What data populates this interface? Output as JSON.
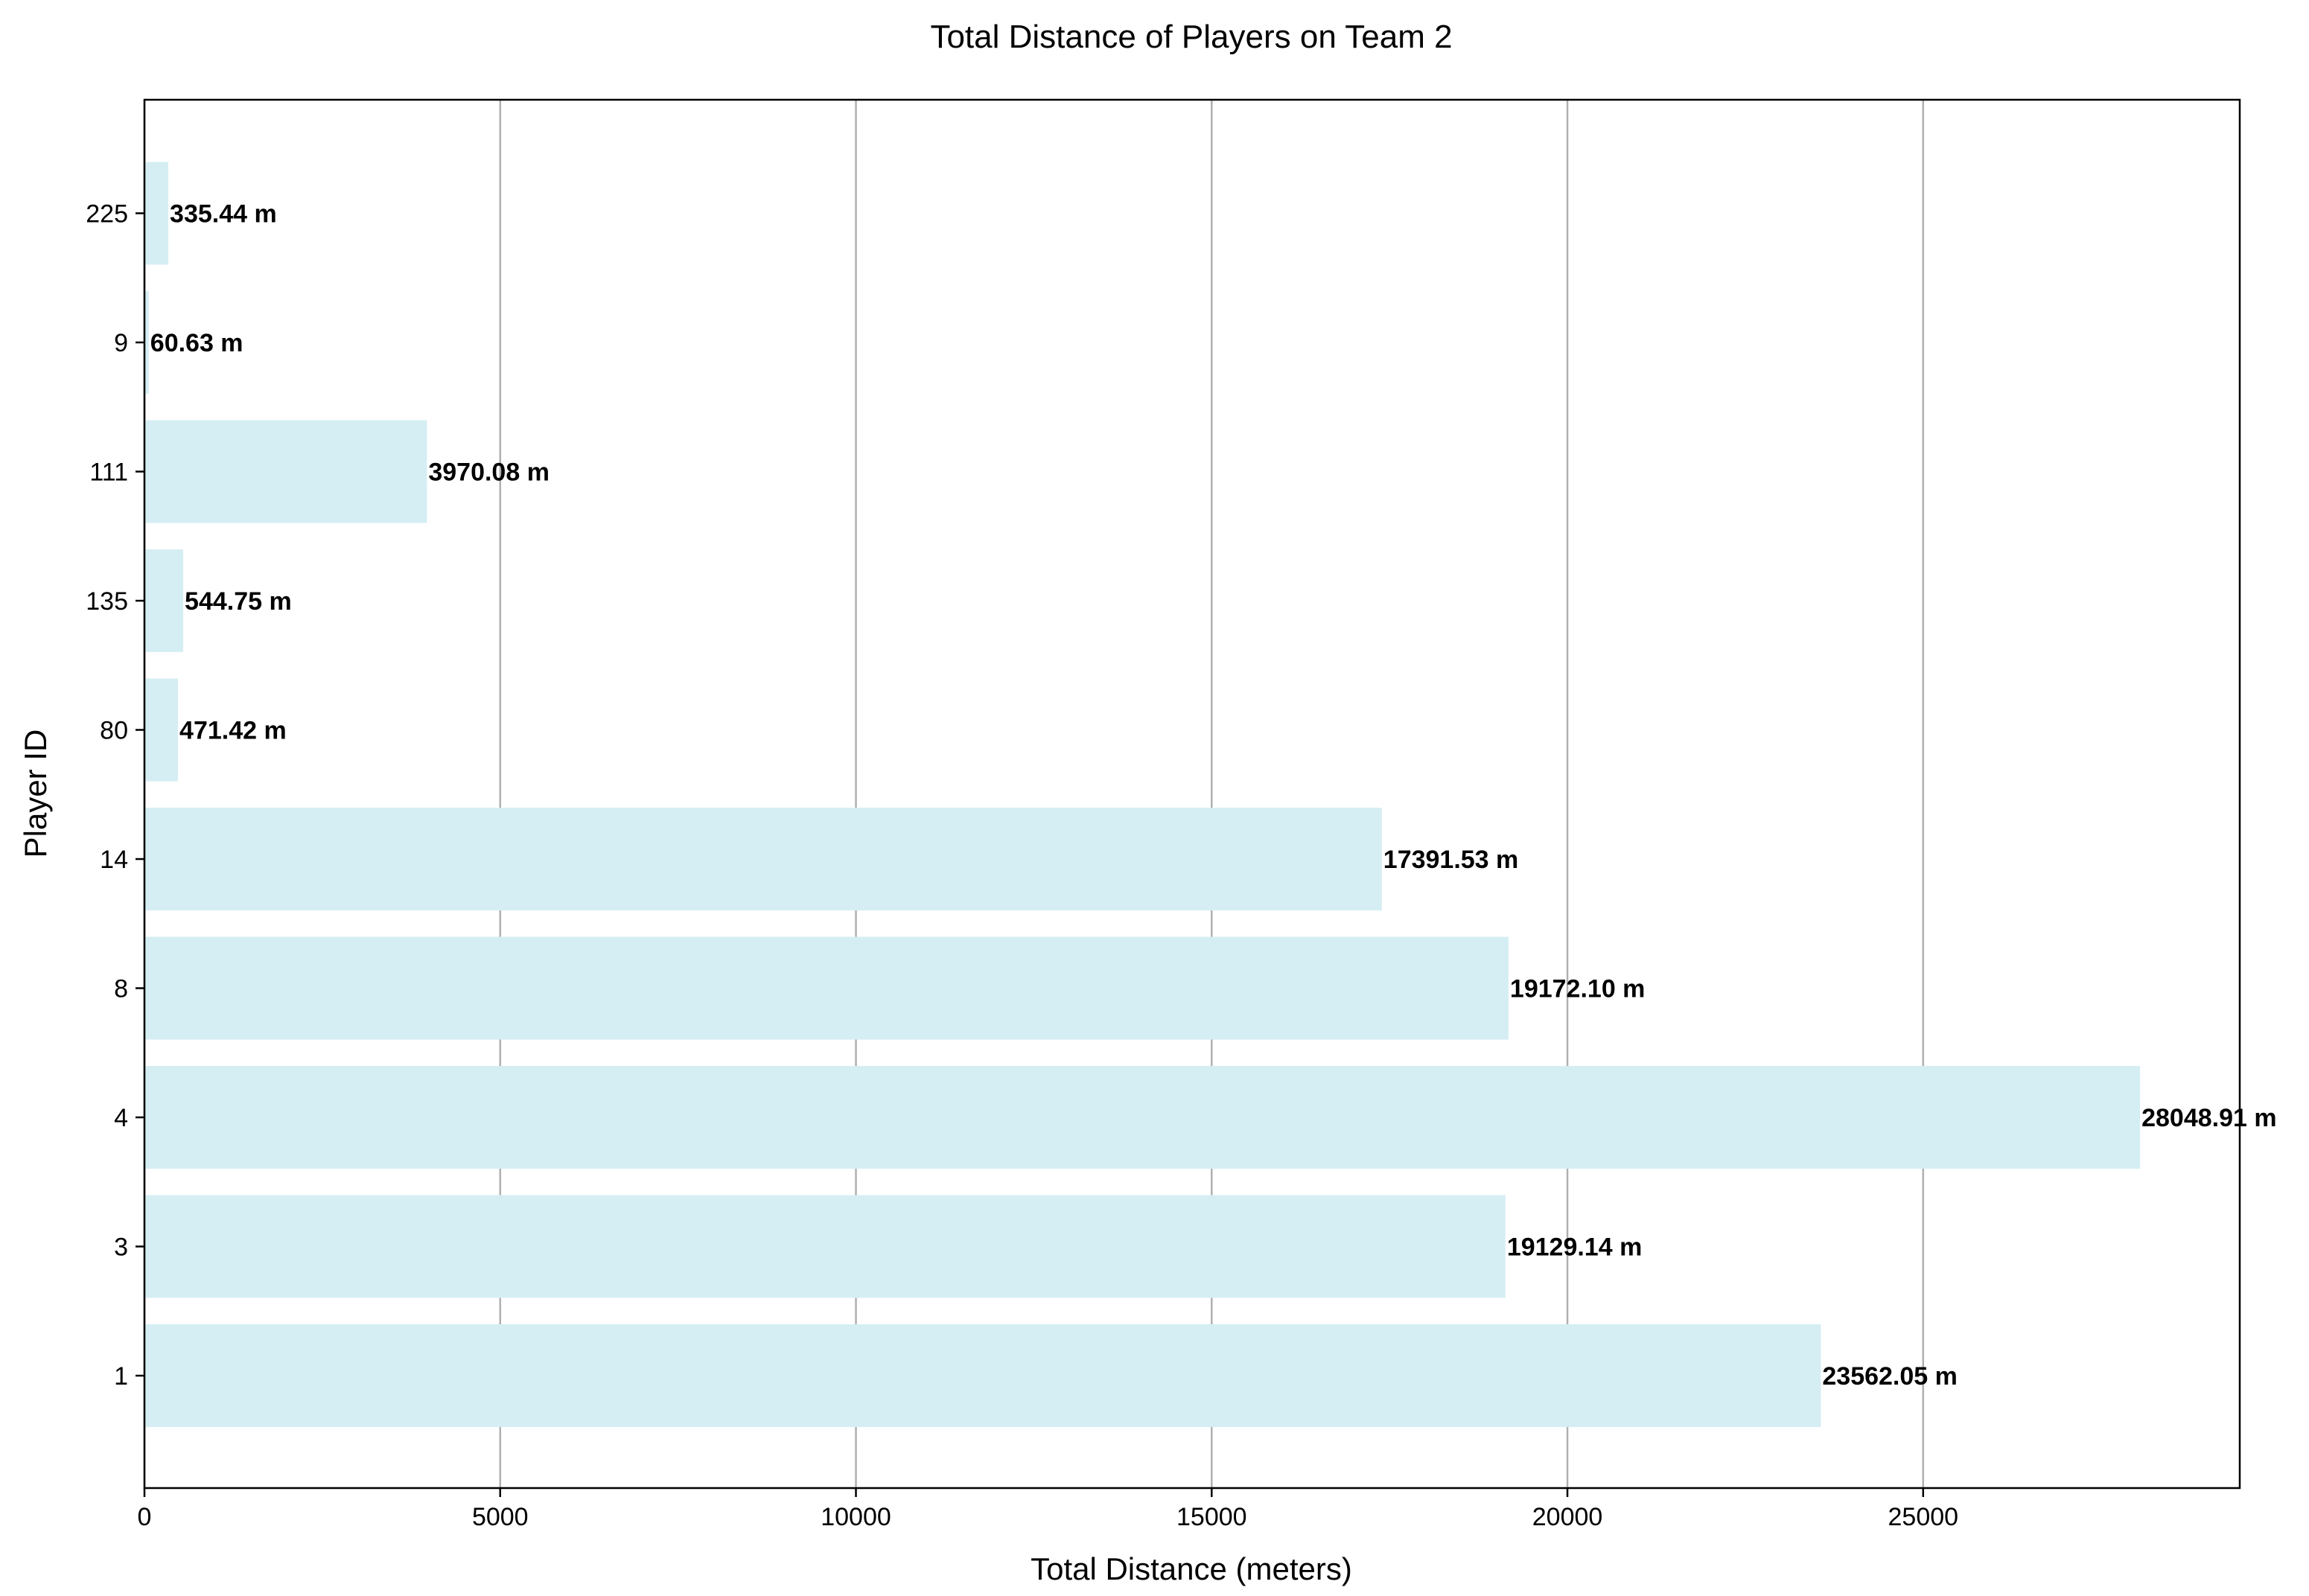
{
  "chart_data": {
    "type": "bar",
    "orientation": "horizontal",
    "title": "Total Distance of Players on Team 2",
    "xlabel": "Total Distance (meters)",
    "ylabel": "Player ID",
    "categories": [
      "1",
      "3",
      "4",
      "8",
      "14",
      "80",
      "135",
      "111",
      "9",
      "225"
    ],
    "values": [
      23562.05,
      19129.14,
      28048.91,
      19172.1,
      17391.53,
      471.42,
      544.75,
      3970.08,
      60.63,
      335.44
    ],
    "value_labels": [
      "23562.05 m",
      "19129.14 m",
      "28048.91 m",
      "19172.10 m",
      "17391.53 m",
      "471.42 m",
      "544.75 m",
      "3970.08 m",
      "60.63 m",
      "335.44 m"
    ],
    "xlim": [
      0,
      29450
    ],
    "xticks": [
      0,
      5000,
      10000,
      15000,
      20000,
      25000
    ],
    "xtick_labels": [
      "0",
      "5000",
      "10000",
      "15000",
      "20000",
      "25000"
    ],
    "grid": "x-axis vertical lines",
    "legend": "none",
    "colors": {
      "bar": "#d5eef3",
      "grid": "#b0b0b0",
      "axis": "#000000",
      "text": "#000000"
    }
  }
}
